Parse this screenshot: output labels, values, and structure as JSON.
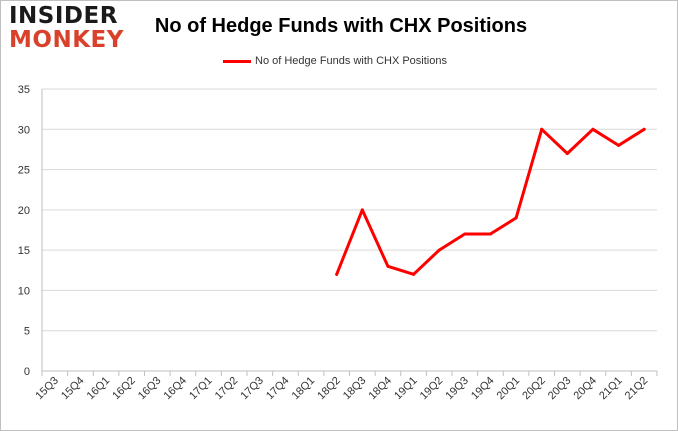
{
  "logo": {
    "line1": "INSIDER",
    "line2": "MONKEY"
  },
  "chart_data": {
    "type": "line",
    "title": "No of Hedge Funds with CHX Positions",
    "xlabel": "",
    "ylabel": "",
    "categories": [
      "15Q3",
      "15Q4",
      "16Q1",
      "16Q2",
      "16Q3",
      "16Q4",
      "17Q1",
      "17Q2",
      "17Q3",
      "17Q4",
      "18Q1",
      "18Q2",
      "18Q3",
      "18Q4",
      "19Q1",
      "19Q2",
      "19Q3",
      "19Q4",
      "20Q1",
      "20Q2",
      "20Q3",
      "20Q4",
      "21Q1",
      "21Q2"
    ],
    "series": [
      {
        "name": "No of Hedge Funds with CHX Positions",
        "color": "#ff0000",
        "values": [
          null,
          null,
          null,
          null,
          null,
          null,
          null,
          null,
          null,
          null,
          null,
          12,
          20,
          13,
          12,
          15,
          17,
          17,
          19,
          30,
          27,
          30,
          28,
          30
        ]
      }
    ],
    "yticks": [
      "0",
      "5",
      "10",
      "15",
      "20",
      "25",
      "30",
      "35"
    ],
    "ylim": [
      0,
      35
    ],
    "grid": true,
    "legend_position": "top"
  }
}
